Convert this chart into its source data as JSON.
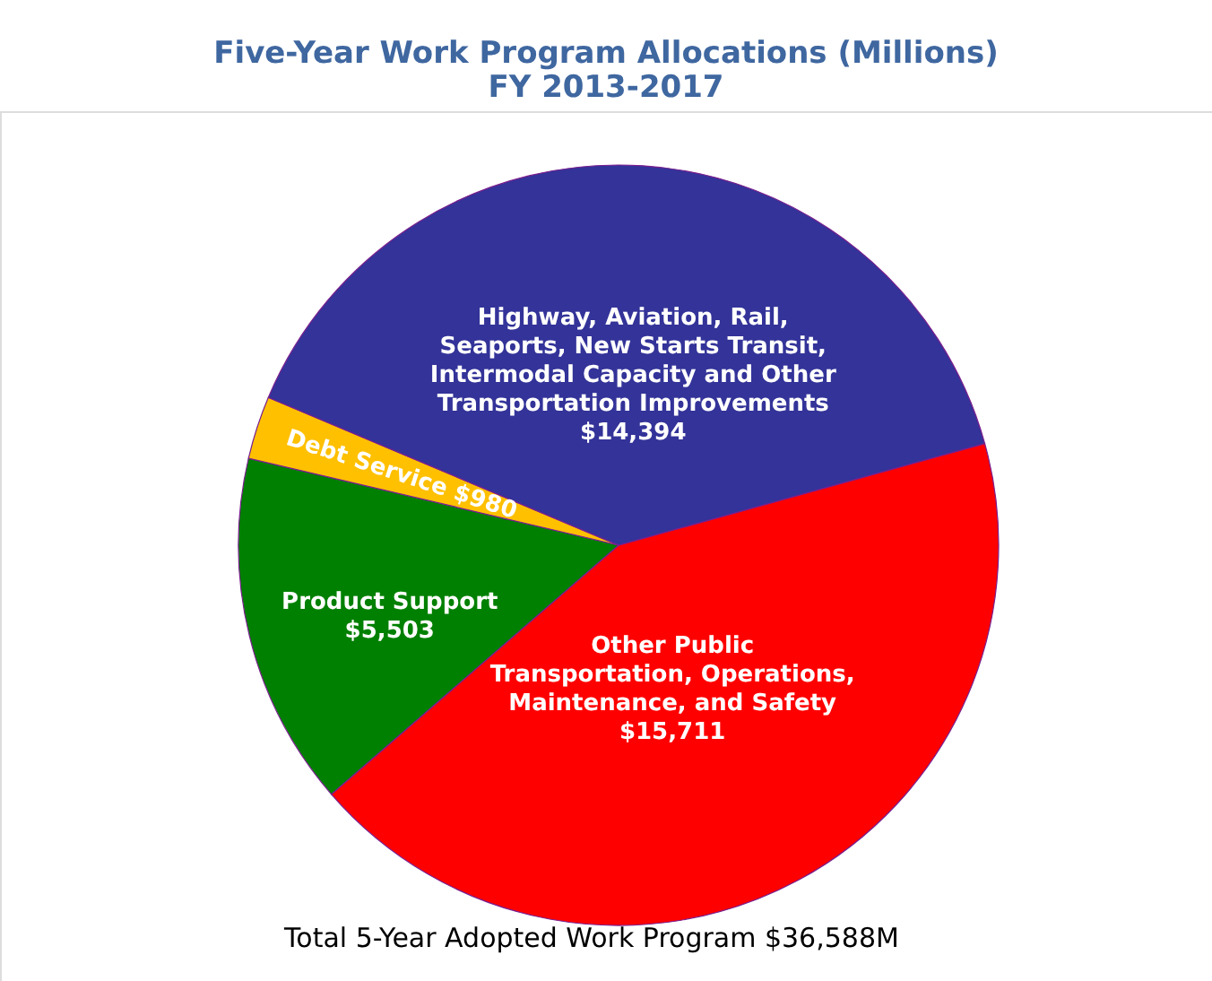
{
  "chart_data": {
    "type": "pie",
    "title": "Five-Year Work Program Allocations (Millions)",
    "subtitle": "FY 2013-2017",
    "categories": [
      "Other Public Transportation, Operations, Maintenance, and Safety",
      "Product Support",
      "Debt Service",
      "Highway, Aviation, Rail, Seaports, New Starts Transit, Intermodal Capacity and Other Transportation Improvements"
    ],
    "values": [
      15711,
      5503,
      980,
      14394
    ],
    "value_labels": [
      "$15,711",
      "$5,503",
      "$980",
      "$14,394"
    ],
    "colors": [
      "#ff0000",
      "#008000",
      "#ffc000",
      "#333399"
    ],
    "annotations": [
      "Total 5-Year Adopted Work Program $36,588M"
    ]
  }
}
